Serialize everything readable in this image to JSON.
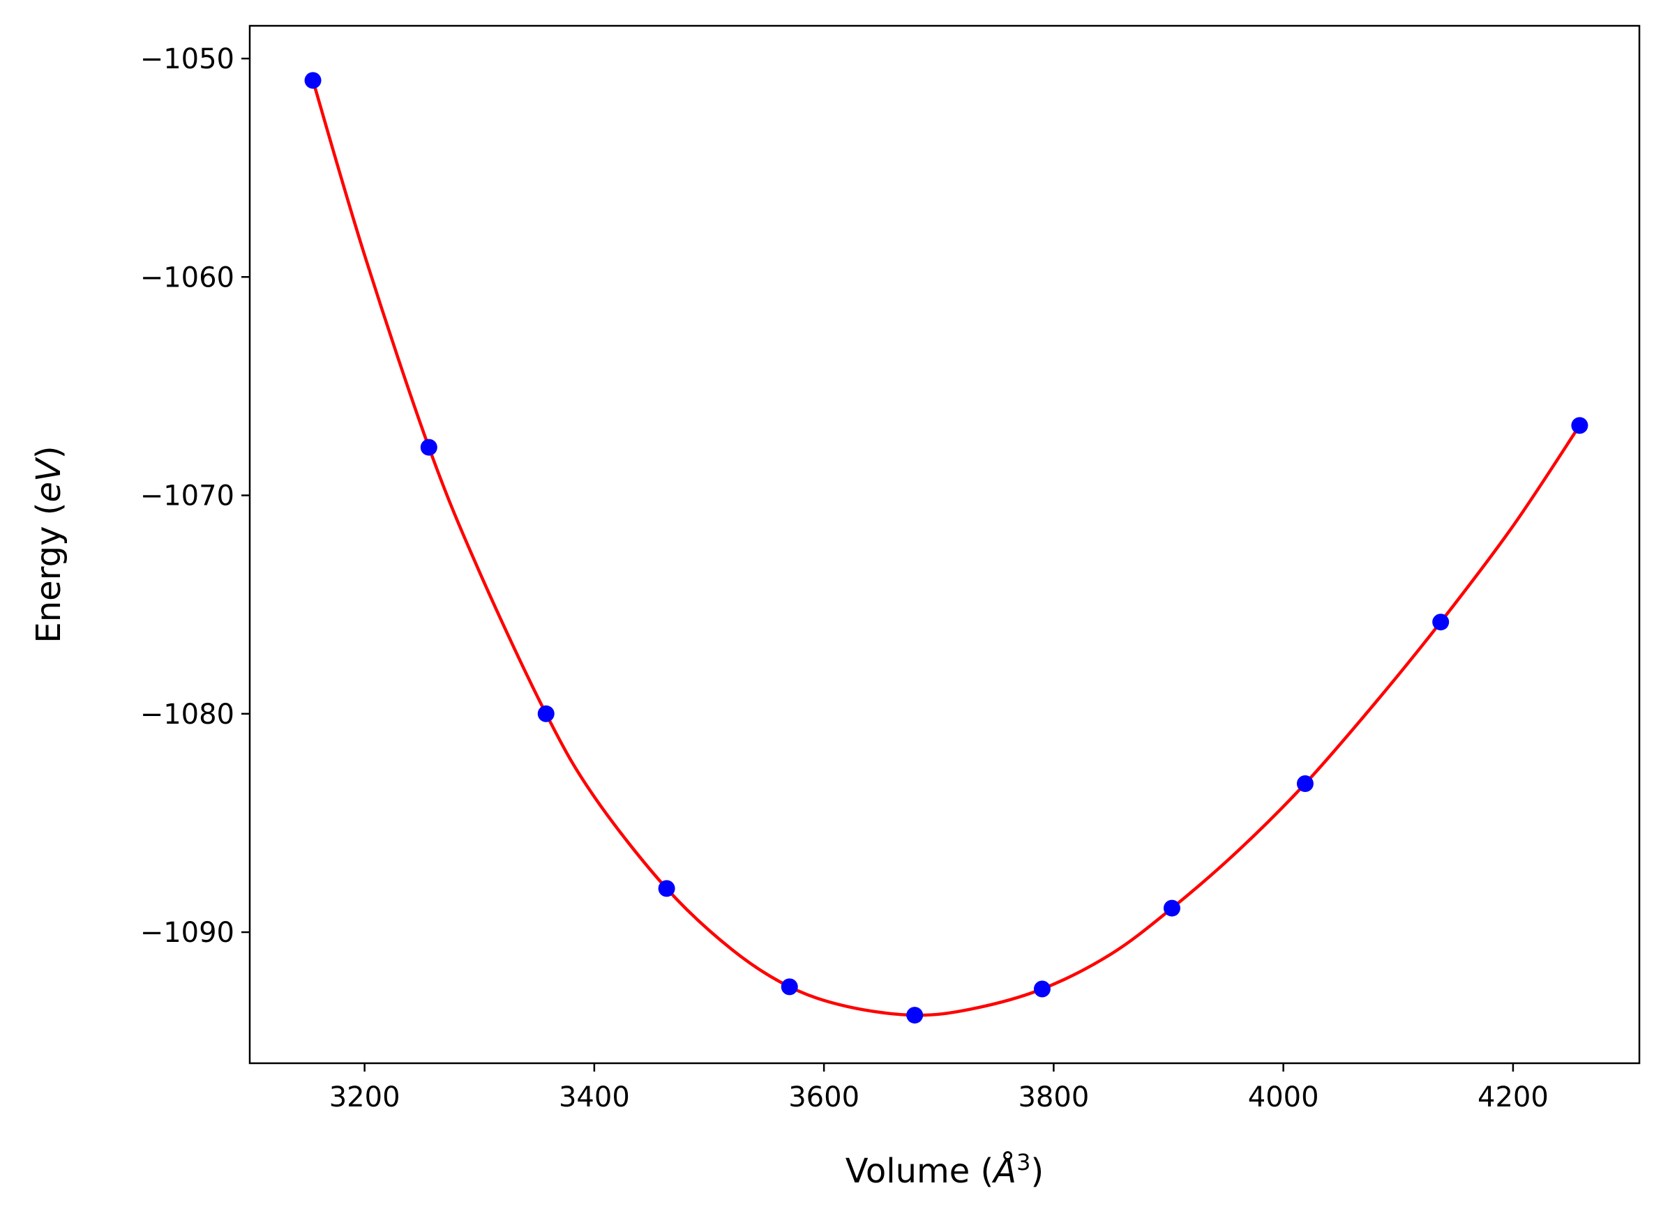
{
  "chart_data": {
    "type": "scatter",
    "title": "",
    "xlabel": {
      "prefix": "Volume (",
      "symbol": "Å",
      "sup": "3",
      "suffix": ")"
    },
    "ylabel": {
      "prefix": "Energy (",
      "symbol": "eV",
      "suffix": ")"
    },
    "xlim": [
      3100,
      4310
    ],
    "ylim": [
      -1096.0,
      -1048.5
    ],
    "xticks": [
      3200,
      3400,
      3600,
      3800,
      4000,
      4200
    ],
    "xtick_labels": [
      "3200",
      "3400",
      "3600",
      "3800",
      "4000",
      "4200"
    ],
    "yticks": [
      -1050,
      -1060,
      -1070,
      -1080,
      -1090
    ],
    "ytick_labels": [
      "−1050",
      "−1060",
      "−1070",
      "−1080",
      "−1090"
    ],
    "grid": false,
    "legend": "none",
    "series": [
      {
        "kind": "points",
        "color": "#0000ff",
        "x": [
          3155,
          3256,
          3358,
          3463,
          3570,
          3679,
          3790,
          3903,
          4019,
          4137,
          4258
        ],
        "y": [
          -1051.0,
          -1067.8,
          -1080.0,
          -1088.0,
          -1092.5,
          -1093.8,
          -1092.6,
          -1088.9,
          -1083.2,
          -1075.8,
          -1066.8
        ]
      },
      {
        "kind": "fit",
        "color": "#ff0000",
        "x": [
          3155,
          3200,
          3256,
          3300,
          3358,
          3400,
          3463,
          3520,
          3570,
          3620,
          3679,
          3730,
          3790,
          3850,
          3903,
          3960,
          4019,
          4080,
          4137,
          4200,
          4258
        ],
        "y": [
          -1051.0,
          -1059.0,
          -1067.8,
          -1073.5,
          -1080.0,
          -1083.8,
          -1088.0,
          -1090.8,
          -1092.5,
          -1093.4,
          -1093.8,
          -1093.5,
          -1092.6,
          -1091.0,
          -1088.9,
          -1086.3,
          -1083.2,
          -1079.5,
          -1075.8,
          -1071.4,
          -1066.8
        ]
      }
    ]
  }
}
